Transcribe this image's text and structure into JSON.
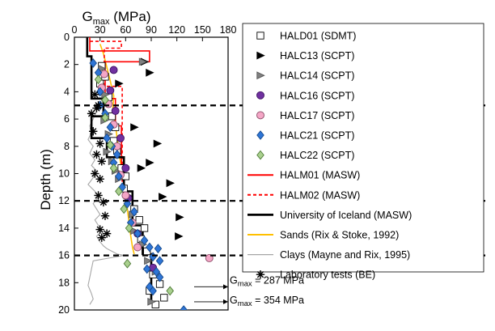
{
  "chart_data": {
    "type": "scatter",
    "xlabel_main": "G",
    "xlabel_sub": "max",
    "xlabel_unit": " (MPa)",
    "ylabel": "Depth (m)",
    "xlim": [
      0,
      180
    ],
    "ylim": [
      0,
      20
    ],
    "y_inverted": true,
    "x_axis_position": "top",
    "x_ticks": [
      "0",
      "30",
      "60",
      "90",
      "120",
      "150",
      "180"
    ],
    "y_ticks": [
      "0",
      "2",
      "4",
      "6",
      "8",
      "10",
      "12",
      "14",
      "16",
      "18",
      "20"
    ],
    "legend_position": "right",
    "horizontal_dashed_lines": [
      5,
      12,
      16
    ],
    "annotations": [
      {
        "main": "G",
        "sub": "max",
        "rest": " = 287 MPa",
        "depth": 18.3
      },
      {
        "main": "G",
        "sub": "max",
        "rest": " = 354 MPa",
        "depth": 19.4
      }
    ],
    "series": [
      {
        "name": "HALD01 (SDMT)",
        "marker": "square",
        "color": "#ffffff",
        "edge": "#000000",
        "points": [
          [
            32,
            2.1
          ],
          [
            36,
            2.9
          ],
          [
            30,
            3.4
          ],
          [
            40,
            4.4
          ],
          [
            44,
            5.8
          ],
          [
            48,
            6.6
          ],
          [
            46,
            7.6
          ],
          [
            50,
            8.3
          ],
          [
            55,
            9.6
          ],
          [
            60,
            10.2
          ],
          [
            58,
            11.1
          ],
          [
            70,
            12.6
          ],
          [
            76,
            13.4
          ],
          [
            82,
            14.0
          ],
          [
            78,
            14.8
          ],
          [
            85,
            15.7
          ],
          [
            92,
            17.4
          ],
          [
            100,
            18.1
          ],
          [
            88,
            18.6
          ],
          [
            105,
            19.1
          ],
          [
            95,
            19.6
          ]
        ]
      },
      {
        "name": "HALC13 (SCPT)",
        "marker": "triangle-right",
        "color": "#000000",
        "edge": "#000000",
        "points": [
          [
            82,
            1.8
          ],
          [
            52,
            3.4
          ],
          [
            88,
            2.6
          ],
          [
            70,
            6.6
          ],
          [
            97,
            7.8
          ],
          [
            78,
            9.6
          ],
          [
            88,
            9.2
          ],
          [
            112,
            10.7
          ],
          [
            103,
            11.7
          ],
          [
            123,
            13.2
          ],
          [
            122,
            14.6
          ]
        ]
      },
      {
        "name": "HALC14 (SCPT)",
        "marker": "triangle-right",
        "color": "#808080",
        "edge": "#555555",
        "points": [
          [
            80,
            1.8
          ],
          [
            32,
            2.3
          ],
          [
            36,
            4.2
          ],
          [
            35,
            6.1
          ],
          [
            40,
            7.1
          ],
          [
            38,
            8.4
          ],
          [
            44,
            9.1
          ],
          [
            48,
            9.8
          ],
          [
            52,
            10.4
          ],
          [
            62,
            11.6
          ],
          [
            68,
            13.0
          ],
          [
            70,
            14.2
          ],
          [
            80,
            15.2
          ],
          [
            86,
            16.4
          ],
          [
            95,
            17.2
          ],
          [
            90,
            19.4
          ]
        ]
      },
      {
        "name": "HALC16 (SCPT)",
        "marker": "circle",
        "color": "#7030a0",
        "edge": "#3d1060",
        "points": [
          [
            46,
            2.4
          ],
          [
            42,
            3.9
          ],
          [
            48,
            5.4
          ],
          [
            54,
            7.4
          ],
          [
            60,
            9.6
          ],
          [
            63,
            11.8
          ],
          [
            74,
            14.4
          ],
          [
            92,
            16.9
          ]
        ]
      },
      {
        "name": "HALC17 (SCPT)",
        "marker": "circle",
        "color": "#f4a6c6",
        "edge": "#8a4a66",
        "points": [
          [
            35,
            2.7
          ],
          [
            32,
            3.7
          ],
          [
            40,
            4.9
          ],
          [
            46,
            6.4
          ],
          [
            50,
            8.0
          ],
          [
            54,
            10.1
          ],
          [
            60,
            11.6
          ],
          [
            68,
            13.6
          ],
          [
            158,
            16.2
          ],
          [
            74,
            15.4
          ]
        ]
      },
      {
        "name": "HALC21 (SCPT)",
        "marker": "diamond",
        "color": "#2e75d6",
        "edge": "#174a8c",
        "points": [
          [
            22,
            1.9
          ],
          [
            28,
            2.6
          ],
          [
            30,
            4.0
          ],
          [
            36,
            5.6
          ],
          [
            30,
            5.0
          ],
          [
            42,
            6.6
          ],
          [
            38,
            7.4
          ],
          [
            44,
            8.0
          ],
          [
            50,
            8.6
          ],
          [
            46,
            9.2
          ],
          [
            52,
            10.2
          ],
          [
            56,
            11.0
          ],
          [
            62,
            12.2
          ],
          [
            70,
            12.8
          ],
          [
            66,
            13.6
          ],
          [
            74,
            14.4
          ],
          [
            82,
            14.9
          ],
          [
            88,
            15.4
          ],
          [
            98,
            15.5
          ],
          [
            92,
            16.1
          ],
          [
            100,
            16.4
          ],
          [
            85,
            17.0
          ],
          [
            96,
            17.2
          ],
          [
            100,
            17.6
          ],
          [
            88,
            18.3
          ],
          [
            92,
            18.6
          ],
          [
            128,
            20.0
          ]
        ]
      },
      {
        "name": "HALC22 (SCPT)",
        "marker": "diamond",
        "color": "#a9d08e",
        "edge": "#4e7a36",
        "points": [
          [
            28,
            3.1
          ],
          [
            36,
            4.6
          ],
          [
            36,
            5.9
          ],
          [
            42,
            7.9
          ],
          [
            46,
            9.6
          ],
          [
            52,
            11.3
          ],
          [
            58,
            12.6
          ],
          [
            64,
            14.0
          ],
          [
            62,
            16.6
          ],
          [
            112,
            18.6
          ]
        ]
      },
      {
        "name": "HALM01 (MASW)",
        "line": "solid",
        "color": "#ff0000",
        "path": [
          [
            18,
            0
          ],
          [
            18,
            1
          ],
          [
            88,
            1
          ],
          [
            88,
            1.8
          ],
          [
            36,
            1.8
          ],
          [
            36,
            4.5
          ],
          [
            48,
            4.5
          ],
          [
            48,
            6.5
          ],
          [
            55,
            6.5
          ],
          [
            55,
            10.3
          ],
          [
            58,
            10.3
          ],
          [
            58,
            11.2
          ]
        ]
      },
      {
        "name": "HALM02 (MASW)",
        "line": "dashed",
        "color": "#ff0000",
        "path": [
          [
            18,
            0.3
          ],
          [
            55,
            0.3
          ],
          [
            55,
            0.8
          ],
          [
            35,
            0.8
          ],
          [
            35,
            3.6
          ],
          [
            56,
            3.6
          ],
          [
            56,
            10.7
          ],
          [
            58,
            10.7
          ],
          [
            58,
            11.3
          ]
        ]
      },
      {
        "name": "University of Iceland (MASW)",
        "line": "solid",
        "color": "#000000",
        "path": [
          [
            15,
            0
          ],
          [
            15,
            1.4
          ],
          [
            20,
            1.4
          ],
          [
            20,
            4.5
          ],
          [
            34,
            4.5
          ],
          [
            34,
            5.8
          ],
          [
            20,
            5.8
          ],
          [
            20,
            7.4
          ],
          [
            38,
            7.4
          ],
          [
            38,
            8.8
          ],
          [
            58,
            8.8
          ],
          [
            58,
            11.3
          ],
          [
            68,
            11.3
          ],
          [
            68,
            13.8
          ],
          [
            80,
            13.8
          ],
          [
            80,
            15.9
          ],
          [
            90,
            15.9
          ],
          [
            90,
            19.4
          ]
        ]
      },
      {
        "name": "Sands (Rix & Stoke, 1992)",
        "line": "solid",
        "color": "#ffc000",
        "path": [
          [
            30,
            0.5
          ],
          [
            34,
            1.2
          ],
          [
            38,
            2.2
          ],
          [
            42,
            3.2
          ],
          [
            46,
            4.3
          ],
          [
            45,
            5.3
          ],
          [
            48,
            6.4
          ],
          [
            50,
            7.4
          ],
          [
            52,
            8.4
          ],
          [
            55,
            9.6
          ],
          [
            58,
            10.6
          ],
          [
            60,
            11.6
          ],
          [
            62,
            12.6
          ],
          [
            64,
            13.6
          ],
          [
            66,
            14.6
          ],
          [
            68,
            15.4
          ],
          [
            70,
            15.9
          ]
        ]
      },
      {
        "name": "Clays (Mayne and Rix, 1995)",
        "line": "solid",
        "color": "#a6a6a6",
        "path": [
          [
            42,
            3.8
          ],
          [
            36,
            4.3
          ],
          [
            30,
            4.8
          ],
          [
            26,
            5.4
          ],
          [
            22,
            6.0
          ],
          [
            18,
            6.5
          ],
          [
            20,
            7.0
          ],
          [
            16,
            7.5
          ],
          [
            22,
            8.0
          ],
          [
            18,
            8.5
          ],
          [
            24,
            9.0
          ],
          [
            20,
            9.4
          ],
          [
            26,
            9.8
          ],
          [
            22,
            10.3
          ],
          [
            16,
            10.8
          ],
          [
            24,
            11.3
          ],
          [
            28,
            11.7
          ],
          [
            22,
            12.2
          ],
          [
            26,
            12.6
          ],
          [
            30,
            13.0
          ],
          [
            24,
            13.4
          ],
          [
            28,
            13.8
          ],
          [
            32,
            14.2
          ],
          [
            26,
            14.6
          ],
          [
            30,
            15.0
          ],
          [
            34,
            15.3
          ],
          [
            38,
            15.5
          ],
          [
            44,
            15.7
          ],
          [
            50,
            15.9
          ],
          [
            58,
            16.0
          ],
          [
            40,
            16.2
          ],
          [
            22,
            16.4
          ],
          [
            20,
            17.0
          ],
          [
            18,
            17.6
          ],
          [
            16,
            18.2
          ],
          [
            20,
            18.8
          ],
          [
            22,
            19.2
          ],
          [
            18,
            19.6
          ]
        ]
      },
      {
        "name": "Laboratory tests (BE)",
        "marker": "asterisk",
        "color": "#000000",
        "edge": "#000000",
        "points": [
          [
            24,
            4.2
          ],
          [
            26,
            5.2
          ],
          [
            20,
            5.6
          ],
          [
            28,
            5.0
          ],
          [
            22,
            6.9
          ],
          [
            30,
            7.8
          ],
          [
            26,
            8.6
          ],
          [
            32,
            9.1
          ],
          [
            24,
            10.0
          ],
          [
            30,
            10.4
          ],
          [
            28,
            11.6
          ],
          [
            34,
            12.1
          ],
          [
            36,
            13.1
          ],
          [
            30,
            14.1
          ],
          [
            38,
            14.4
          ],
          [
            32,
            14.7
          ]
        ]
      }
    ]
  }
}
